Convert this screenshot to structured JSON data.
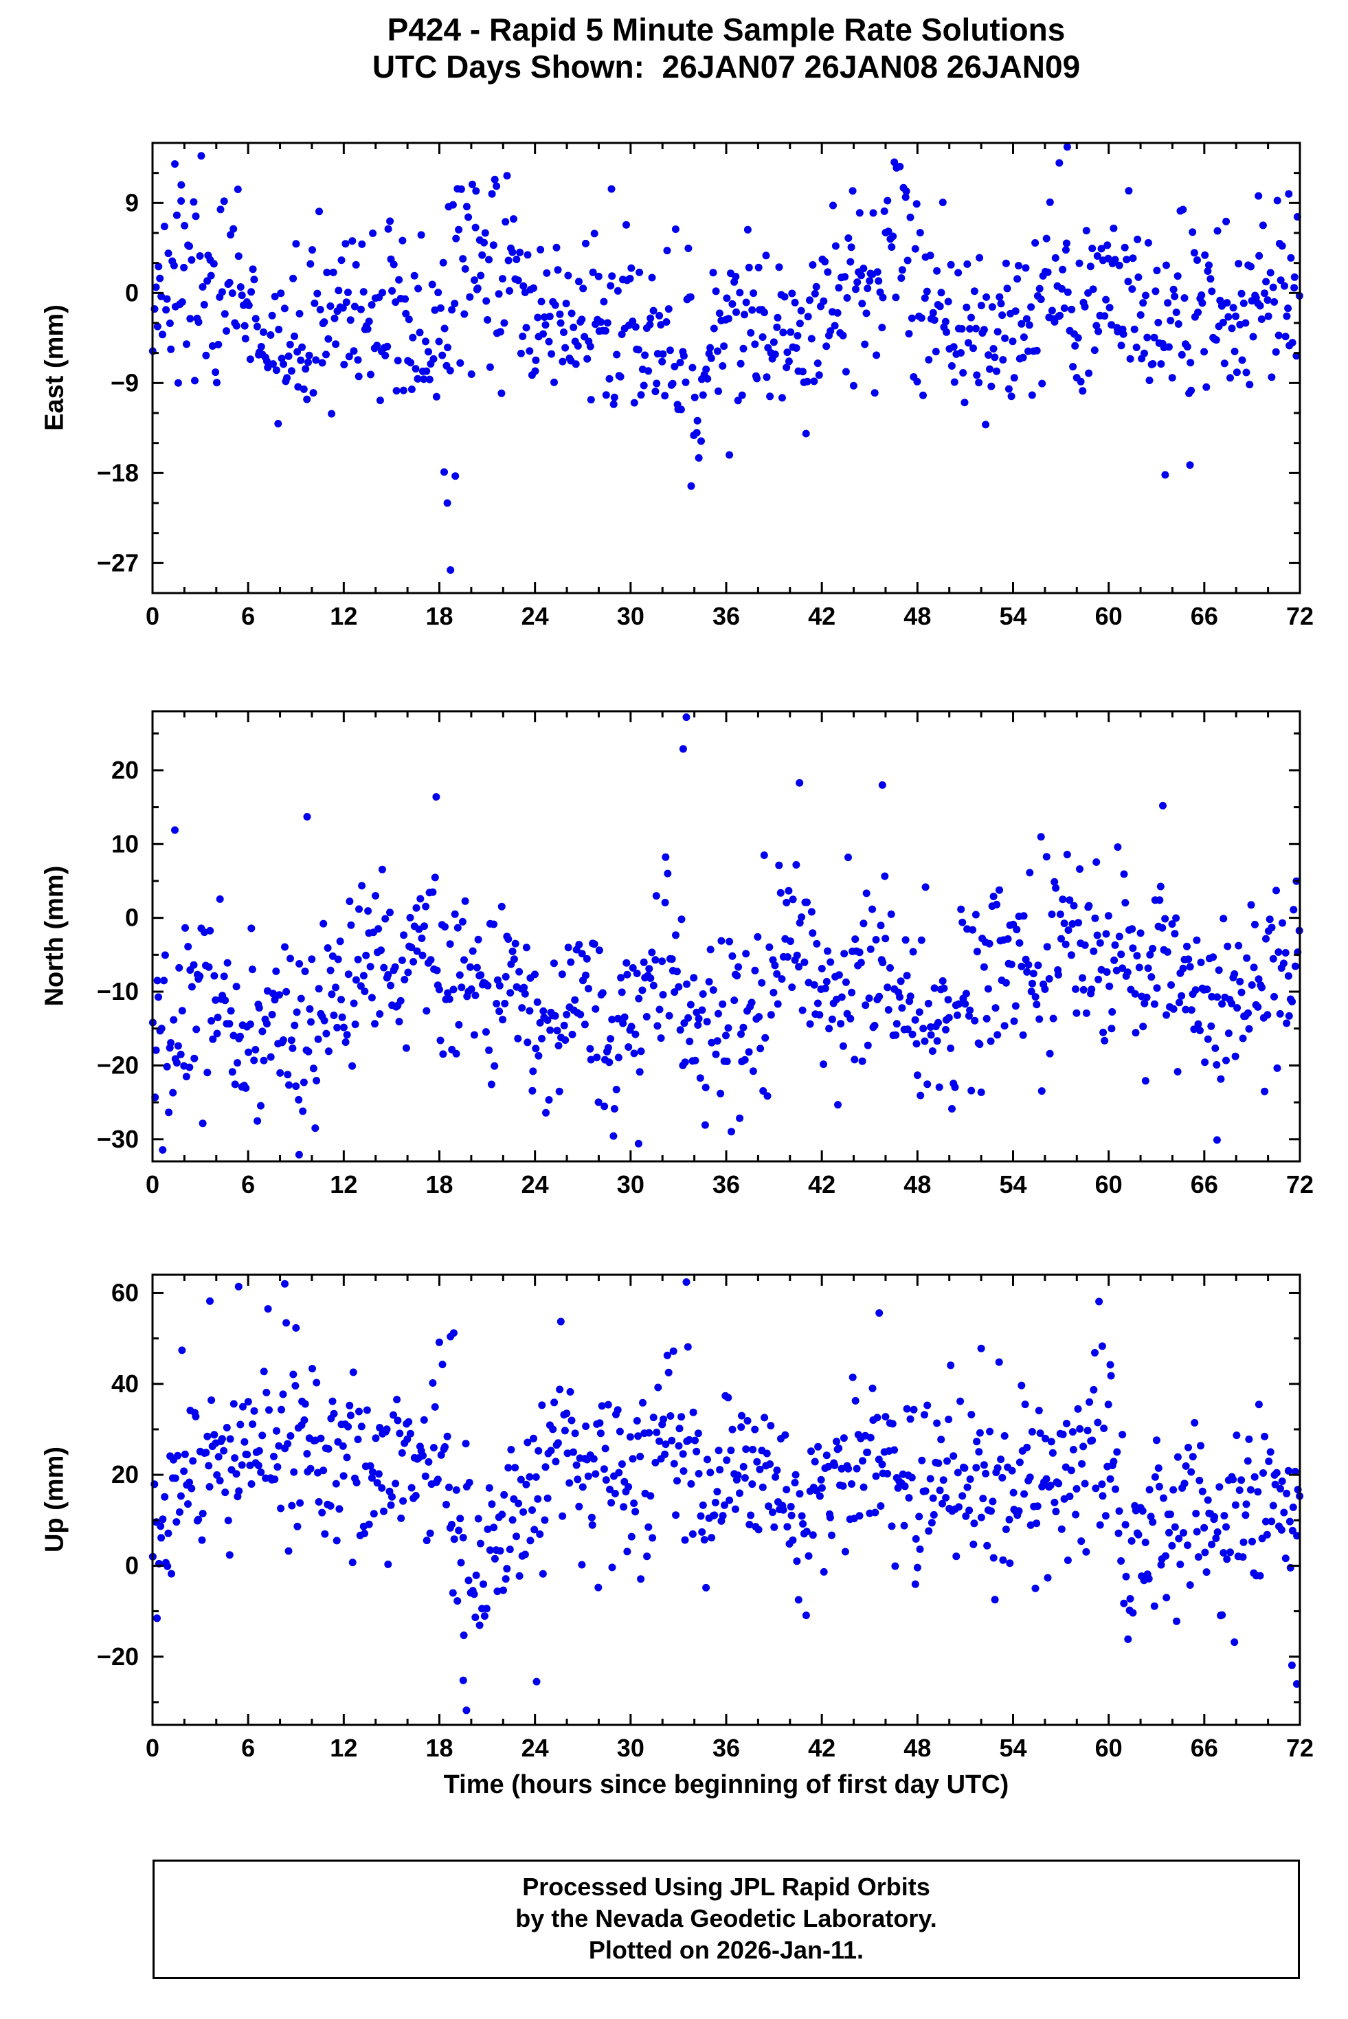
{
  "title": {
    "line1": "P424 - Rapid 5 Minute Sample Rate Solutions",
    "line2": "UTC Days Shown:  26JAN07 26JAN08 26JAN09"
  },
  "xaxis_title": "Time (hours since beginning of first day UTC)",
  "footer": {
    "line1": "Processed Using JPL Rapid Orbits",
    "line2": "by the Nevada Geodetic Laboratory.",
    "line3": "Plotted on 2026-Jan-11."
  },
  "colors": {
    "marker": "#0000ee",
    "frame": "#000000",
    "background": "#ffffff"
  },
  "chart_data": [
    {
      "type": "scatter",
      "ylabel": "East (mm)",
      "xlim": [
        0,
        72
      ],
      "ylim": [
        -30,
        15
      ],
      "xticks": [
        0,
        6,
        12,
        18,
        24,
        30,
        36,
        42,
        48,
        54,
        60,
        66,
        72
      ],
      "yticks": [
        9,
        0,
        -9,
        -18,
        -27
      ],
      "x_minor": 2,
      "y_minor": 3,
      "grid": false,
      "marker_color": "#0000ee",
      "cloud": {
        "n": 830,
        "seed": 7,
        "std": 4.6,
        "walk": 2.0,
        "anchors": [
          [
            0,
            -1
          ],
          [
            2,
            0
          ],
          [
            4,
            -1
          ],
          [
            6,
            -3
          ],
          [
            8,
            -4
          ],
          [
            10,
            -4
          ],
          [
            12,
            -5
          ],
          [
            14,
            -5
          ],
          [
            16,
            -6
          ],
          [
            17,
            -7
          ],
          [
            18,
            -9
          ],
          [
            19,
            1
          ],
          [
            20,
            2
          ],
          [
            21,
            3
          ],
          [
            22,
            1
          ],
          [
            23,
            0
          ],
          [
            24,
            -1
          ],
          [
            26,
            0
          ],
          [
            28,
            -1
          ],
          [
            30,
            -2
          ],
          [
            32,
            -3
          ],
          [
            34,
            -4
          ],
          [
            36,
            -3
          ],
          [
            38,
            -2
          ],
          [
            40,
            -1
          ],
          [
            42,
            -2
          ],
          [
            44,
            0
          ],
          [
            46,
            -1
          ],
          [
            48,
            0
          ],
          [
            50,
            1
          ],
          [
            52,
            -1
          ],
          [
            54,
            -2
          ],
          [
            56,
            0
          ],
          [
            58,
            -2
          ],
          [
            60,
            -1
          ],
          [
            62,
            -2
          ],
          [
            64,
            -4
          ],
          [
            66,
            -3
          ],
          [
            68,
            -1
          ],
          [
            70,
            0
          ],
          [
            72,
            -2
          ]
        ]
      },
      "notable_points": [
        [
          1.4,
          12.9
        ],
        [
          1.8,
          10.8
        ],
        [
          18.3,
          -17.9
        ],
        [
          18.5,
          -21.0
        ],
        [
          18.7,
          -27.7
        ],
        [
          19.0,
          -18.3
        ],
        [
          20.3,
          10.2
        ],
        [
          28.8,
          10.4
        ],
        [
          33.8,
          -19.3
        ],
        [
          56.9,
          13.0
        ],
        [
          57.4,
          14.6
        ],
        [
          65.1,
          -17.2
        ],
        [
          69.4,
          9.7
        ],
        [
          71.3,
          9.9
        ]
      ]
    },
    {
      "type": "scatter",
      "ylabel": "North (mm)",
      "xlim": [
        0,
        72
      ],
      "ylim": [
        -33,
        28
      ],
      "xticks": [
        0,
        6,
        12,
        18,
        24,
        30,
        36,
        42,
        48,
        54,
        60,
        66,
        72
      ],
      "yticks": [
        20,
        10,
        0,
        -10,
        -20,
        -30
      ],
      "x_minor": 2,
      "y_minor": 5,
      "grid": false,
      "marker_color": "#0000ee",
      "cloud": {
        "n": 830,
        "seed": 19,
        "std": 6.2,
        "walk": 2.5,
        "anchors": [
          [
            0,
            -14
          ],
          [
            1,
            -18
          ],
          [
            2,
            -12
          ],
          [
            3,
            -8
          ],
          [
            4,
            -10
          ],
          [
            5,
            -12
          ],
          [
            6,
            -14
          ],
          [
            7,
            -16
          ],
          [
            8,
            -18
          ],
          [
            9,
            -16
          ],
          [
            10,
            -12
          ],
          [
            11,
            -10
          ],
          [
            12,
            -12
          ],
          [
            13,
            -8
          ],
          [
            14,
            -6
          ],
          [
            15,
            -10
          ],
          [
            16,
            -8
          ],
          [
            17,
            -4
          ],
          [
            18,
            -6
          ],
          [
            19,
            -10
          ],
          [
            20,
            -12
          ],
          [
            21,
            -14
          ],
          [
            22,
            -12
          ],
          [
            23,
            -10
          ],
          [
            24,
            -10
          ],
          [
            25,
            -12
          ],
          [
            26,
            -10
          ],
          [
            27,
            -8
          ],
          [
            28,
            -10
          ],
          [
            29,
            -12
          ],
          [
            30,
            -10
          ],
          [
            31,
            -8
          ],
          [
            32,
            -6
          ],
          [
            33,
            -6
          ],
          [
            34,
            -10
          ],
          [
            35,
            -12
          ],
          [
            36,
            -12
          ],
          [
            37,
            -10
          ],
          [
            38,
            -8
          ],
          [
            39,
            -6
          ],
          [
            40,
            -2
          ],
          [
            41,
            0
          ],
          [
            42,
            -4
          ],
          [
            43,
            -8
          ],
          [
            44,
            -6
          ],
          [
            45,
            -4
          ],
          [
            46,
            -8
          ],
          [
            47,
            -10
          ],
          [
            48,
            -12
          ],
          [
            49,
            -12
          ],
          [
            50,
            -10
          ],
          [
            51,
            -8
          ],
          [
            52,
            -6
          ],
          [
            53,
            -5
          ],
          [
            54,
            -6
          ],
          [
            55,
            -5
          ],
          [
            56,
            -7
          ],
          [
            57,
            -8
          ],
          [
            58,
            -9
          ],
          [
            59,
            -10
          ],
          [
            60,
            -8
          ],
          [
            61,
            -5
          ],
          [
            62,
            -4
          ],
          [
            63,
            -3
          ],
          [
            64,
            -4
          ],
          [
            65,
            -8
          ],
          [
            66,
            -12
          ],
          [
            67,
            -14
          ],
          [
            68,
            -13
          ],
          [
            69,
            -12
          ],
          [
            70,
            -11
          ],
          [
            71,
            -10
          ],
          [
            72,
            -8
          ]
        ]
      },
      "notable_points": [
        [
          1.4,
          11.9
        ],
        [
          9.2,
          -32.1
        ],
        [
          9.7,
          13.7
        ],
        [
          17.8,
          16.4
        ],
        [
          30.5,
          -30.6
        ],
        [
          33.3,
          22.9
        ],
        [
          33.5,
          27.2
        ],
        [
          40.6,
          18.3
        ],
        [
          45.8,
          18.0
        ],
        [
          63.4,
          15.2
        ],
        [
          66.8,
          -30.1
        ]
      ]
    },
    {
      "type": "scatter",
      "ylabel": "Up (mm)",
      "xlim": [
        0,
        72
      ],
      "ylim": [
        -35,
        64
      ],
      "xticks": [
        0,
        6,
        12,
        18,
        24,
        30,
        36,
        42,
        48,
        54,
        60,
        66,
        72
      ],
      "yticks": [
        60,
        40,
        20,
        0,
        -20
      ],
      "x_minor": 2,
      "y_minor": 10,
      "grid": false,
      "marker_color": "#0000ee",
      "cloud": {
        "n": 830,
        "seed": 23,
        "std": 10.0,
        "walk": 3.0,
        "anchors": [
          [
            0,
            8
          ],
          [
            1,
            12
          ],
          [
            2,
            18
          ],
          [
            3,
            25
          ],
          [
            4,
            28
          ],
          [
            5,
            26
          ],
          [
            6,
            30
          ],
          [
            7,
            32
          ],
          [
            8,
            34
          ],
          [
            9,
            30
          ],
          [
            10,
            24
          ],
          [
            11,
            26
          ],
          [
            12,
            28
          ],
          [
            13,
            22
          ],
          [
            14,
            16
          ],
          [
            15,
            12
          ],
          [
            16,
            18
          ],
          [
            17,
            22
          ],
          [
            18,
            28
          ],
          [
            19,
            8
          ],
          [
            20,
            2
          ],
          [
            21,
            6
          ],
          [
            22,
            10
          ],
          [
            23,
            12
          ],
          [
            24,
            14
          ],
          [
            25,
            18
          ],
          [
            26,
            22
          ],
          [
            27,
            20
          ],
          [
            28,
            18
          ],
          [
            29,
            16
          ],
          [
            30,
            16
          ],
          [
            31,
            20
          ],
          [
            32,
            26
          ],
          [
            33,
            28
          ],
          [
            34,
            22
          ],
          [
            35,
            18
          ],
          [
            36,
            25
          ],
          [
            37,
            28
          ],
          [
            38,
            24
          ],
          [
            39,
            22
          ],
          [
            40,
            18
          ],
          [
            41,
            12
          ],
          [
            42,
            14
          ],
          [
            43,
            18
          ],
          [
            44,
            24
          ],
          [
            45,
            28
          ],
          [
            46,
            22
          ],
          [
            47,
            18
          ],
          [
            48,
            16
          ],
          [
            49,
            14
          ],
          [
            50,
            16
          ],
          [
            51,
            14
          ],
          [
            52,
            16
          ],
          [
            53,
            18
          ],
          [
            54,
            20
          ],
          [
            55,
            22
          ],
          [
            56,
            18
          ],
          [
            57,
            16
          ],
          [
            58,
            22
          ],
          [
            59,
            26
          ],
          [
            60,
            24
          ],
          [
            61,
            14
          ],
          [
            62,
            10
          ],
          [
            63,
            8
          ],
          [
            64,
            12
          ],
          [
            65,
            14
          ],
          [
            66,
            12
          ],
          [
            67,
            14
          ],
          [
            68,
            16
          ],
          [
            69,
            18
          ],
          [
            70,
            12
          ],
          [
            71,
            6
          ],
          [
            72,
            4
          ]
        ]
      },
      "notable_points": [
        [
          3.6,
          58.2
        ],
        [
          5.4,
          61.4
        ],
        [
          8.3,
          62.0
        ],
        [
          9.0,
          52.3
        ],
        [
          18.7,
          50.4
        ],
        [
          18.9,
          51.2
        ],
        [
          33.5,
          62.4
        ],
        [
          45.6,
          55.6
        ],
        [
          19.5,
          -25.2
        ],
        [
          19.7,
          -31.8
        ],
        [
          24.1,
          -25.5
        ],
        [
          52.0,
          47.8
        ],
        [
          59.6,
          48.3
        ],
        [
          60.1,
          44.2
        ],
        [
          71.5,
          -21.9
        ],
        [
          71.8,
          -26.0
        ]
      ]
    }
  ]
}
